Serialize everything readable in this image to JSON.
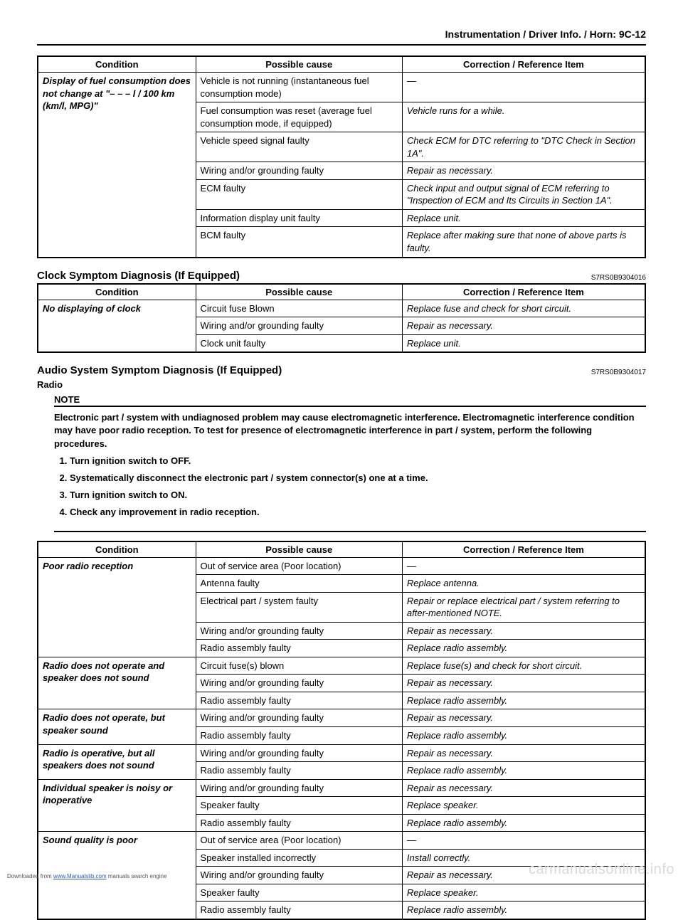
{
  "header": "Instrumentation / Driver Info. / Horn:    9C-12",
  "table_headers": {
    "cond": "Condition",
    "cause": "Possible cause",
    "corr": "Correction / Reference Item"
  },
  "table1": {
    "cond": "Display of fuel consumption does not change at \"– – – l / 100 km (km/l, MPG)\"",
    "rows": [
      {
        "cause": "Vehicle is not running (instantaneous fuel consumption mode)",
        "corr": "—"
      },
      {
        "cause": "Fuel consumption was reset (average fuel consumption mode, if equipped)",
        "corr": "Vehicle runs for a while."
      },
      {
        "cause": "Vehicle speed signal faulty",
        "corr": "Check ECM for DTC referring to \"DTC Check in Section 1A\"."
      },
      {
        "cause": "Wiring and/or grounding faulty",
        "corr": "Repair as necessary."
      },
      {
        "cause": "ECM faulty",
        "corr": "Check input and output signal of ECM referring to \"Inspection of ECM and Its Circuits in Section 1A\"."
      },
      {
        "cause": "Information display unit faulty",
        "corr": "Replace unit."
      },
      {
        "cause": "BCM faulty",
        "corr": "Replace after making sure that none of above parts is faulty."
      }
    ]
  },
  "section2": {
    "title": "Clock Symptom Diagnosis (If Equipped)",
    "code": "S7RS0B9304016"
  },
  "table2": {
    "cond": "No displaying of clock",
    "rows": [
      {
        "cause": "Circuit fuse Blown",
        "corr": "Replace fuse and check for short circuit."
      },
      {
        "cause": "Wiring and/or grounding faulty",
        "corr": "Repair as necessary."
      },
      {
        "cause": "Clock unit faulty",
        "corr": "Replace unit."
      }
    ]
  },
  "section3": {
    "title": "Audio System Symptom Diagnosis (If Equipped)",
    "code": "S7RS0B9304017",
    "sub": "Radio"
  },
  "note": {
    "label": "NOTE",
    "text": "Electronic part / system with undiagnosed problem may cause electromagnetic interference. Electromagnetic interference condition may have poor radio reception. To test for presence of electromagnetic interference in part / system, perform the following procedures.",
    "steps": [
      "Turn ignition switch to OFF.",
      "Systematically disconnect the electronic part / system connector(s) one at a time.",
      "Turn ignition switch to ON.",
      "Check any improvement in radio reception."
    ]
  },
  "table3": {
    "groups": [
      {
        "cond": "Poor radio reception",
        "rows": [
          {
            "cause": "Out of service area (Poor location)",
            "corr": "—"
          },
          {
            "cause": "Antenna faulty",
            "corr": "Replace antenna."
          },
          {
            "cause": "Electrical part / system faulty",
            "corr": "Repair or replace electrical part / system referring to after-mentioned NOTE."
          },
          {
            "cause": "Wiring and/or grounding faulty",
            "corr": "Repair as necessary."
          },
          {
            "cause": "Radio assembly faulty",
            "corr": "Replace radio assembly."
          }
        ]
      },
      {
        "cond": "Radio does not operate and speaker does not sound",
        "rows": [
          {
            "cause": "Circuit fuse(s) blown",
            "corr": "Replace fuse(s) and check for short circuit."
          },
          {
            "cause": "Wiring and/or grounding faulty",
            "corr": "Repair as necessary."
          },
          {
            "cause": "Radio assembly faulty",
            "corr": "Replace radio assembly."
          }
        ]
      },
      {
        "cond": "Radio does not operate, but speaker sound",
        "rows": [
          {
            "cause": "Wiring and/or grounding faulty",
            "corr": "Repair as necessary."
          },
          {
            "cause": "Radio assembly faulty",
            "corr": "Replace radio assembly."
          }
        ]
      },
      {
        "cond": "Radio is operative, but all speakers does not sound",
        "rows": [
          {
            "cause": "Wiring and/or grounding faulty",
            "corr": "Repair as necessary."
          },
          {
            "cause": "Radio assembly faulty",
            "corr": "Replace radio assembly."
          }
        ]
      },
      {
        "cond": "Individual speaker is noisy or inoperative",
        "rows": [
          {
            "cause": "Wiring and/or grounding faulty",
            "corr": "Repair as necessary."
          },
          {
            "cause": "Speaker faulty",
            "corr": "Replace speaker."
          },
          {
            "cause": "Radio assembly faulty",
            "corr": "Replace radio assembly."
          }
        ]
      },
      {
        "cond": "Sound quality is poor",
        "rows": [
          {
            "cause": "Out of service area (Poor location)",
            "corr": "—"
          },
          {
            "cause": "Speaker installed incorrectly",
            "corr": "Install correctly."
          },
          {
            "cause": "Wiring and/or grounding faulty",
            "corr": "Repair as necessary."
          },
          {
            "cause": "Speaker faulty",
            "corr": "Replace speaker."
          },
          {
            "cause": "Radio assembly faulty",
            "corr": "Replace radio assembly."
          }
        ]
      }
    ]
  },
  "footer": {
    "pre": "Downloaded from ",
    "link": "www.Manualslib.com",
    "post": " manuals search engine"
  },
  "watermark": "carmanualsonline.info"
}
